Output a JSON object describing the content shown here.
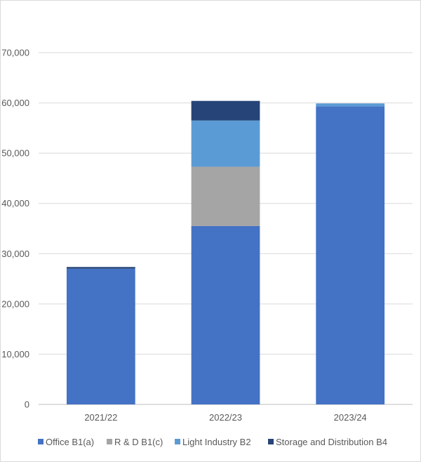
{
  "chart_data": {
    "type": "bar",
    "stacked": true,
    "categories": [
      "2021/22",
      "2022/23",
      "2023/24"
    ],
    "series": [
      {
        "name": "Office B1(a)",
        "color": "#4472C4",
        "values": [
          27000,
          35500,
          59300
        ]
      },
      {
        "name": "R & D B1(c)",
        "color": "#A5A5A5",
        "values": [
          0,
          11800,
          0
        ]
      },
      {
        "name": "Light Industry B2",
        "color": "#5B9BD5",
        "values": [
          0,
          9200,
          600
        ]
      },
      {
        "name": "Storage and Distribution B4",
        "color": "#264478",
        "values": [
          350,
          3900,
          0
        ]
      }
    ],
    "yticks": [
      "0",
      "10,000",
      "20,000",
      "30,000",
      "40,000",
      "50,000",
      "60,000",
      "70,000"
    ],
    "ylim": [
      0,
      70000
    ],
    "grid": true,
    "legend_position": "bottom"
  }
}
